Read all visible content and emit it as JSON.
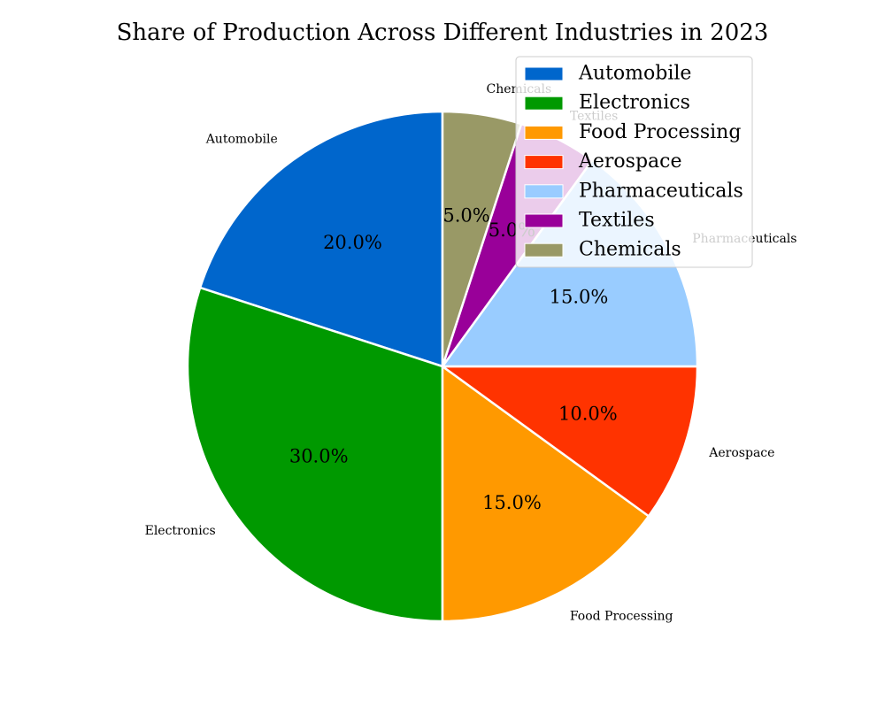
{
  "chart_data": {
    "type": "pie",
    "title": "Share of Production Across Different Industries in 2023",
    "categories": [
      "Automobile",
      "Electronics",
      "Food Processing",
      "Aerospace",
      "Pharmaceuticals",
      "Textiles",
      "Chemicals"
    ],
    "values": [
      20.0,
      30.0,
      15.0,
      10.0,
      15.0,
      5.0,
      5.0
    ],
    "percent_labels": [
      "20.0%",
      "30.0%",
      "15.0%",
      "10.0%",
      "15.0%",
      "5.0%",
      "5.0%"
    ],
    "colors": [
      "#0066cc",
      "#009900",
      "#ff9900",
      "#ff3300",
      "#99ccff",
      "#990099",
      "#999966"
    ],
    "legend": {
      "entries": [
        "Automobile",
        "Electronics",
        "Food Processing",
        "Aerospace",
        "Pharmaceuticals",
        "Textiles",
        "Chemicals"
      ],
      "placement": "top-right"
    },
    "start_angle_deg": 90,
    "direction": "counterclockwise",
    "edge_color": "#ffffff"
  }
}
